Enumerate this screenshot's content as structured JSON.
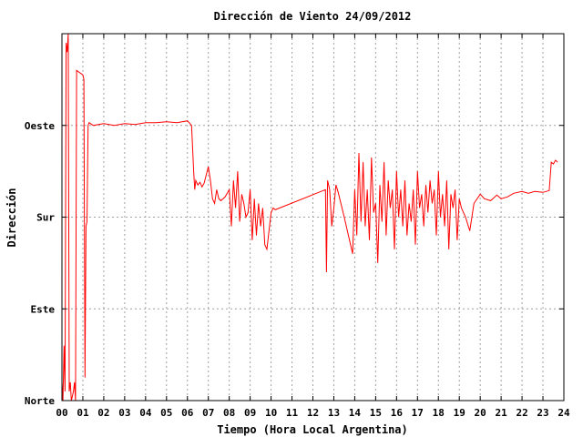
{
  "chart_data": {
    "type": "line",
    "title": "Dirección de Viento 24/09/2012",
    "xlabel": "Tiempo (Hora Local Argentina)",
    "ylabel": "Dirección",
    "xlim": [
      0,
      24
    ],
    "ylim": [
      0,
      400
    ],
    "x_ticks": [
      "00",
      "01",
      "02",
      "03",
      "04",
      "05",
      "06",
      "07",
      "08",
      "09",
      "10",
      "11",
      "12",
      "13",
      "14",
      "15",
      "16",
      "17",
      "18",
      "19",
      "20",
      "21",
      "22",
      "23",
      "24"
    ],
    "y_ticks": [
      {
        "value": 0,
        "label": "Norte"
      },
      {
        "value": 100,
        "label": "Este"
      },
      {
        "value": 200,
        "label": "Sur"
      },
      {
        "value": 300,
        "label": "Oeste"
      }
    ],
    "grid": true,
    "series": [
      {
        "color": "#ff0000",
        "x": [
          0.0,
          0.05,
          0.1,
          0.15,
          0.2,
          0.25,
          0.3,
          0.35,
          0.4,
          0.45,
          0.5,
          0.55,
          0.6,
          0.65,
          0.7,
          1.0,
          1.05,
          1.1,
          1.15,
          1.2,
          1.25,
          1.3,
          1.5,
          2.0,
          2.5,
          3.0,
          3.5,
          4.0,
          4.5,
          5.0,
          5.5,
          6.0,
          6.2,
          6.3,
          6.35,
          6.4,
          6.5,
          6.6,
          6.7,
          6.8,
          7.0,
          7.1,
          7.2,
          7.3,
          7.4,
          7.5,
          7.6,
          7.8,
          8.0,
          8.1,
          8.2,
          8.3,
          8.4,
          8.5,
          8.6,
          8.7,
          8.8,
          8.9,
          9.0,
          9.1,
          9.2,
          9.3,
          9.4,
          9.5,
          9.6,
          9.7,
          9.8,
          10.0,
          10.1,
          10.2,
          12.6,
          12.65,
          12.7,
          12.8,
          12.9,
          13.0,
          13.1,
          13.2,
          13.5,
          13.9,
          14.0,
          14.1,
          14.2,
          14.3,
          14.4,
          14.5,
          14.6,
          14.7,
          14.8,
          14.9,
          15.0,
          15.1,
          15.2,
          15.3,
          15.4,
          15.5,
          15.6,
          15.7,
          15.8,
          15.9,
          16.0,
          16.1,
          16.2,
          16.3,
          16.4,
          16.5,
          16.6,
          16.7,
          16.8,
          16.9,
          17.0,
          17.1,
          17.2,
          17.3,
          17.4,
          17.5,
          17.6,
          17.7,
          17.8,
          17.9,
          18.0,
          18.1,
          18.2,
          18.3,
          18.4,
          18.5,
          18.6,
          18.7,
          18.8,
          18.9,
          19.0,
          19.1,
          19.3,
          19.5,
          19.7,
          20.0,
          20.2,
          20.5,
          20.8,
          21.0,
          21.3,
          21.6,
          22.0,
          22.3,
          22.6,
          23.0,
          23.3,
          23.4,
          23.5,
          23.6,
          23.7
        ],
        "values": [
          20,
          0,
          60,
          10,
          390,
          380,
          400,
          10,
          20,
          0,
          5,
          10,
          20,
          0,
          360,
          355,
          350,
          25,
          190,
          195,
          300,
          303,
          300,
          302,
          300,
          302,
          301,
          303,
          303,
          304,
          303,
          305,
          300,
          250,
          230,
          240,
          235,
          238,
          233,
          237,
          255,
          240,
          220,
          215,
          230,
          220,
          218,
          222,
          230,
          190,
          240,
          210,
          250,
          195,
          225,
          215,
          200,
          205,
          230,
          175,
          220,
          180,
          215,
          190,
          210,
          170,
          165,
          205,
          210,
          208,
          230,
          140,
          240,
          230,
          190,
          210,
          235,
          228,
          200,
          160,
          230,
          180,
          270,
          195,
          260,
          190,
          230,
          175,
          265,
          205,
          215,
          150,
          235,
          195,
          260,
          180,
          240,
          210,
          230,
          165,
          250,
          200,
          230,
          190,
          240,
          180,
          215,
          195,
          230,
          170,
          250,
          210,
          225,
          190,
          235,
          205,
          240,
          215,
          230,
          180,
          250,
          200,
          225,
          190,
          240,
          165,
          225,
          210,
          230,
          175,
          220,
          210,
          200,
          185,
          215,
          225,
          220,
          218,
          224,
          220,
          222,
          226,
          228,
          226,
          228,
          227,
          229,
          260,
          258,
          262,
          260
        ]
      }
    ]
  }
}
